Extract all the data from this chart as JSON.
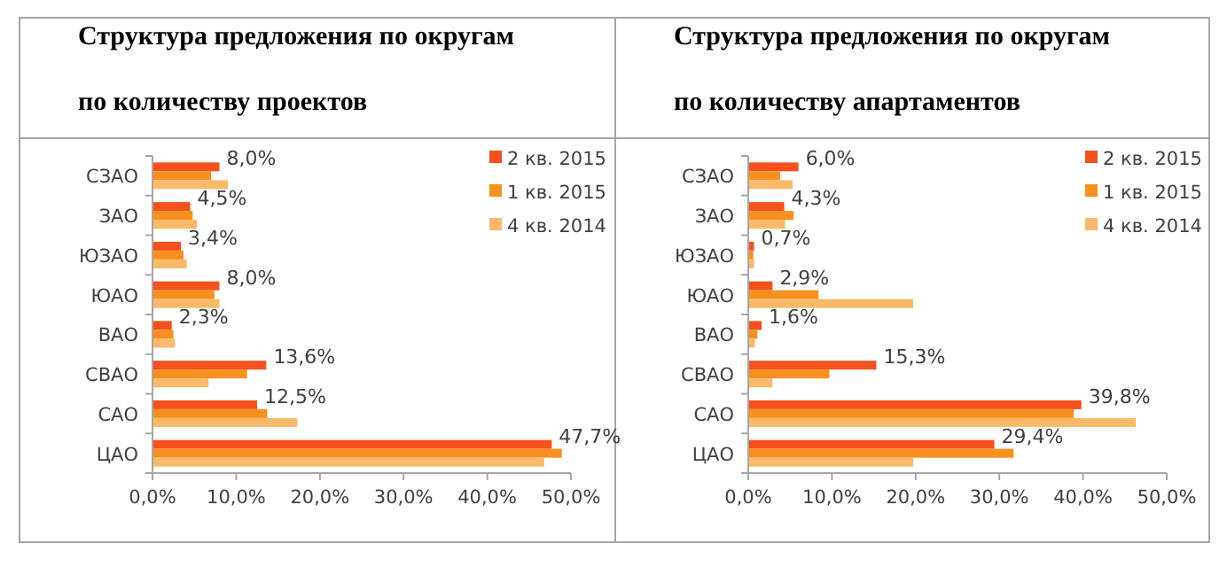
{
  "chart_data": [
    {
      "type": "bar",
      "orientation": "horizontal",
      "title": "Структура предложения по округам\nпо количеству проектов",
      "categories": [
        "СЗАО",
        "ЗАО",
        "ЮЗАО",
        "ЮАО",
        "ВАО",
        "СВАО",
        "САО",
        "ЦАО"
      ],
      "series": [
        {
          "name": "2 кв. 2015",
          "color": "#f4511e",
          "values": [
            8.0,
            4.5,
            3.4,
            8.0,
            2.3,
            13.6,
            12.5,
            47.7
          ],
          "value_labels": [
            "8,0%",
            "4,5%",
            "3,4%",
            "8,0%",
            "2,3%",
            "13,6%",
            "12,5%",
            "47,7%"
          ]
        },
        {
          "name": "1 кв. 2015",
          "color": "#f7901e",
          "values": [
            7.0,
            4.8,
            3.7,
            7.4,
            2.5,
            11.3,
            13.7,
            48.9
          ]
        },
        {
          "name": "4 кв. 2014",
          "color": "#fbb96a",
          "values": [
            9.0,
            5.3,
            4.1,
            8.0,
            2.7,
            6.7,
            17.3,
            46.8
          ]
        }
      ],
      "xlim": [
        0,
        50
      ],
      "xticks": [
        {
          "value": 0,
          "label": "0,0%"
        },
        {
          "value": 10,
          "label": "10,0%"
        },
        {
          "value": 20,
          "label": "20,0%"
        },
        {
          "value": 30,
          "label": "30,0%"
        },
        {
          "value": 40,
          "label": "40,0%"
        },
        {
          "value": 50,
          "label": "50,0%"
        }
      ],
      "grid": false,
      "legend": "top right"
    },
    {
      "type": "bar",
      "orientation": "horizontal",
      "title": "Структура предложения по округам\nпо количеству апартаментов",
      "categories": [
        "СЗАО",
        "ЗАО",
        "ЮЗАО",
        "ЮАО",
        "ВАО",
        "СВАО",
        "САО",
        "ЦАО"
      ],
      "series": [
        {
          "name": "2 кв. 2015",
          "color": "#f4511e",
          "values": [
            6.0,
            4.3,
            0.7,
            2.9,
            1.6,
            15.3,
            39.8,
            29.4
          ],
          "value_labels": [
            "6,0%",
            "4,3%",
            "0,7%",
            "2,9%",
            "1,6%",
            "15,3%",
            "39,8%",
            "29,4%"
          ]
        },
        {
          "name": "1 кв. 2015",
          "color": "#f7901e",
          "values": [
            3.8,
            5.4,
            0.6,
            8.4,
            1.1,
            9.7,
            38.9,
            31.7
          ]
        },
        {
          "name": "4 кв. 2014",
          "color": "#fbb96a",
          "values": [
            5.3,
            4.4,
            0.7,
            19.7,
            0.8,
            2.9,
            46.3,
            19.7
          ]
        }
      ],
      "xlim": [
        0,
        50
      ],
      "xticks": [
        {
          "value": 0,
          "label": "0,0%"
        },
        {
          "value": 10,
          "label": "10,0%"
        },
        {
          "value": 20,
          "label": "20,0%"
        },
        {
          "value": 30,
          "label": "30,0%"
        },
        {
          "value": 40,
          "label": "40,0%"
        },
        {
          "value": 50,
          "label": "50,0%"
        }
      ],
      "grid": false,
      "legend": "top right"
    }
  ]
}
